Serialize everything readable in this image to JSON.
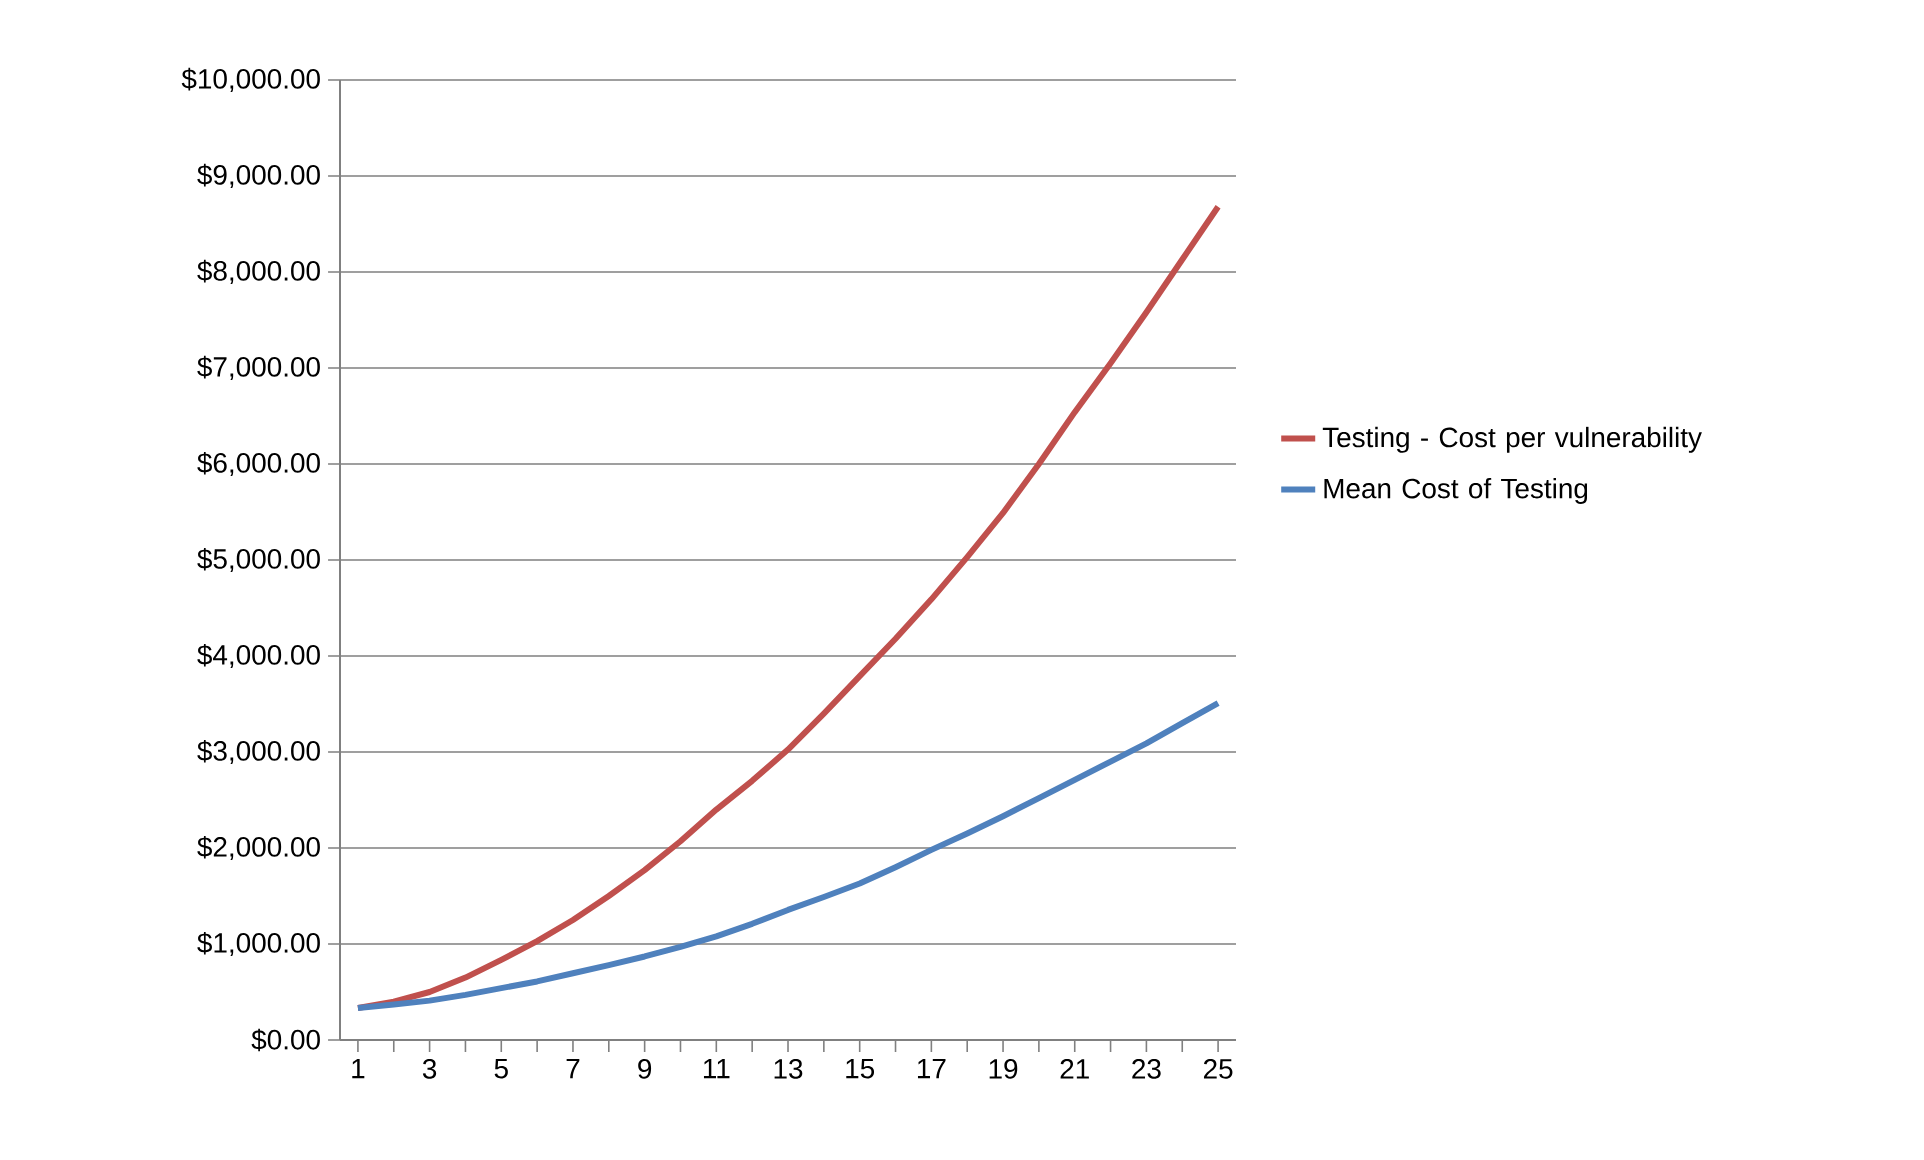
{
  "chart_data": {
    "type": "line",
    "categories": [
      "1",
      null,
      "3",
      null,
      "5",
      null,
      "7",
      null,
      "9",
      null,
      "11",
      null,
      "13",
      null,
      "15",
      null,
      "17",
      null,
      "19",
      null,
      "21",
      null,
      "23",
      null,
      "25"
    ],
    "series": [
      {
        "name": "Testing - Cost per vulnerability",
        "color": "#c0504d",
        "values": [
          334,
          400,
          500,
          650,
          835,
          1030,
          1250,
          1500,
          1770,
          2070,
          2400,
          2700,
          3025,
          3400,
          3790,
          4180,
          4590,
          5030,
          5490,
          6000,
          6540,
          7050,
          7580,
          8130,
          8680
        ]
      },
      {
        "name": "Mean Cost of Testing",
        "color": "#4f81bd",
        "values": [
          334,
          370,
          410,
          470,
          540,
          610,
          695,
          780,
          870,
          970,
          1080,
          1210,
          1355,
          1490,
          1630,
          1800,
          1980,
          2150,
          2330,
          2520,
          2710,
          2900,
          3090,
          3300,
          3510
        ]
      }
    ],
    "ylim": [
      0,
      10000
    ],
    "yticks": [
      {
        "value": 0,
        "label": "$0.00"
      },
      {
        "value": 1000,
        "label": "$1,000.00"
      },
      {
        "value": 2000,
        "label": "$2,000.00"
      },
      {
        "value": 3000,
        "label": "$3,000.00"
      },
      {
        "value": 4000,
        "label": "$4,000.00"
      },
      {
        "value": 5000,
        "label": "$5,000.00"
      },
      {
        "value": 6000,
        "label": "$6,000.00"
      },
      {
        "value": 7000,
        "label": "$7,000.00"
      },
      {
        "value": 8000,
        "label": "$8,000.00"
      },
      {
        "value": 9000,
        "label": "$9,000.00"
      },
      {
        "value": 10000,
        "label": "$10,000.00"
      }
    ],
    "grid": "y",
    "legend": "right",
    "marker": "none",
    "line_style": "solid"
  }
}
